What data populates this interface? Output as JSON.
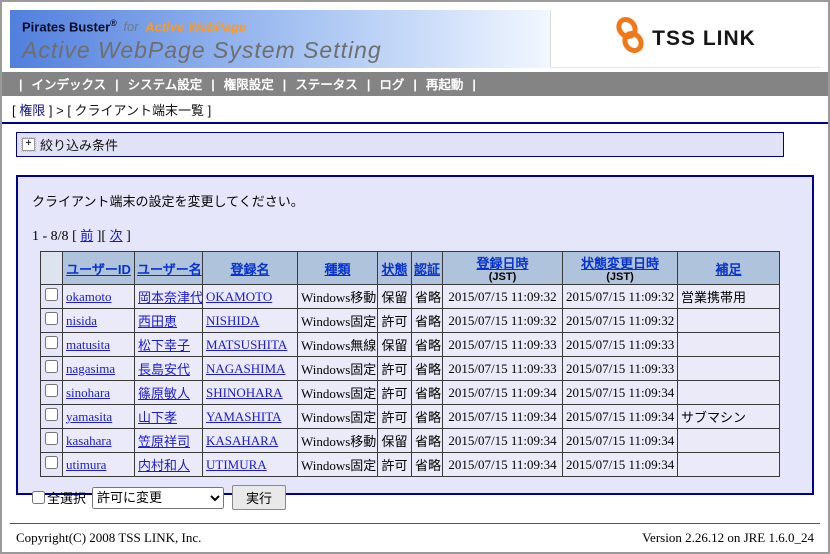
{
  "header": {
    "brand": "Pirates Buster",
    "brand_reg": "®",
    "brand_for": "for",
    "brand_product": "Active WebPage",
    "title": "Active WebPage System Setting",
    "logo_text": "TSS LINK"
  },
  "nav": {
    "separator": "|",
    "items": [
      "インデックス",
      "システム設定",
      "権限設定",
      "ステータス",
      "ログ",
      "再起動"
    ]
  },
  "breadcrumb": {
    "open": "[ ",
    "close": " ]",
    "separator": " > ",
    "section": "権限",
    "page": "クライアント端末一覧"
  },
  "filter": {
    "toggle_icon": "+",
    "label": "絞り込み条件"
  },
  "main": {
    "instruction": "クライアント端末の設定を変更してください。",
    "pagination": {
      "range": "1 - 8/8",
      "bracket_open": "[ ",
      "bracket_close": " ]",
      "prev": "前",
      "next": "次"
    },
    "select_all_label": "全選択",
    "action_select_value": "許可に変更",
    "execute_button": "実行"
  },
  "table": {
    "columns": [
      {
        "key": "select",
        "label": "",
        "width": 22
      },
      {
        "key": "user_id",
        "label": "ユーザーID",
        "width": 72,
        "link": true
      },
      {
        "key": "user_name",
        "label": "ユーザー名",
        "width": 68,
        "link": true
      },
      {
        "key": "registered_name",
        "label": "登録名",
        "width": 95,
        "link": true
      },
      {
        "key": "type",
        "label": "種類",
        "width": 80
      },
      {
        "key": "status",
        "label": "状態",
        "width": 34,
        "align": "center"
      },
      {
        "key": "auth",
        "label": "認証",
        "width": 31,
        "align": "center"
      },
      {
        "key": "registered_at",
        "label": "登録日時",
        "sub": "(JST)",
        "width": 120,
        "align": "center"
      },
      {
        "key": "status_changed_at",
        "label": "状態変更日時",
        "sub": "(JST)",
        "width": 115,
        "align": "center"
      },
      {
        "key": "note",
        "label": "補足",
        "width": 102
      }
    ],
    "rows": [
      {
        "user_id": "okamoto",
        "user_name": "岡本奈津代",
        "registered_name": "OKAMOTO",
        "type": "Windows移動",
        "status": "保留",
        "auth": "省略",
        "registered_at": "2015/07/15 11:09:32",
        "status_changed_at": "2015/07/15 11:09:32",
        "note": "営業携帯用"
      },
      {
        "user_id": "nisida",
        "user_name": "西田恵",
        "registered_name": "NISHIDA",
        "type": "Windows固定",
        "status": "許可",
        "auth": "省略",
        "registered_at": "2015/07/15 11:09:32",
        "status_changed_at": "2015/07/15 11:09:32",
        "note": ""
      },
      {
        "user_id": "matusita",
        "user_name": "松下幸子",
        "registered_name": "MATSUSHITA",
        "type": "Windows無線",
        "status": "保留",
        "auth": "省略",
        "registered_at": "2015/07/15 11:09:33",
        "status_changed_at": "2015/07/15 11:09:33",
        "note": ""
      },
      {
        "user_id": "nagasima",
        "user_name": "長島安代",
        "registered_name": "NAGASHIMA",
        "type": "Windows固定",
        "status": "許可",
        "auth": "省略",
        "registered_at": "2015/07/15 11:09:33",
        "status_changed_at": "2015/07/15 11:09:33",
        "note": ""
      },
      {
        "user_id": "sinohara",
        "user_name": "篠原敏人",
        "registered_name": "SHINOHARA",
        "type": "Windows固定",
        "status": "許可",
        "auth": "省略",
        "registered_at": "2015/07/15 11:09:34",
        "status_changed_at": "2015/07/15 11:09:34",
        "note": ""
      },
      {
        "user_id": "yamasita",
        "user_name": "山下孝",
        "registered_name": "YAMASHITA",
        "type": "Windows固定",
        "status": "許可",
        "auth": "省略",
        "registered_at": "2015/07/15 11:09:34",
        "status_changed_at": "2015/07/15 11:09:34",
        "note": "サブマシン"
      },
      {
        "user_id": "kasahara",
        "user_name": "笠原祥司",
        "registered_name": "KASAHARA",
        "type": "Windows移動",
        "status": "保留",
        "auth": "省略",
        "registered_at": "2015/07/15 11:09:34",
        "status_changed_at": "2015/07/15 11:09:34",
        "note": ""
      },
      {
        "user_id": "utimura",
        "user_name": "内村和人",
        "registered_name": "UTIMURA",
        "type": "Windows固定",
        "status": "許可",
        "auth": "省略",
        "registered_at": "2015/07/15 11:09:34",
        "status_changed_at": "2015/07/15 11:09:34",
        "note": ""
      }
    ]
  },
  "footer": {
    "copyright": "Copyright(C) 2008 TSS LINK, Inc.",
    "version": "Version 2.26.12 on JRE 1.6.0_24"
  },
  "colors": {
    "banner_gradient_from": "#517fdd",
    "banner_gradient_to": "#f2f7ff",
    "brand_orange": "#ff9922",
    "logo_orange": "#f07818",
    "nav_background": "#848484",
    "panel_background": "#e6e6fa",
    "panel_border": "#000090",
    "table_header_background": "#b0c3dc",
    "table_cell_background": "#eaeaf8",
    "link_blue": "#0733cc"
  }
}
